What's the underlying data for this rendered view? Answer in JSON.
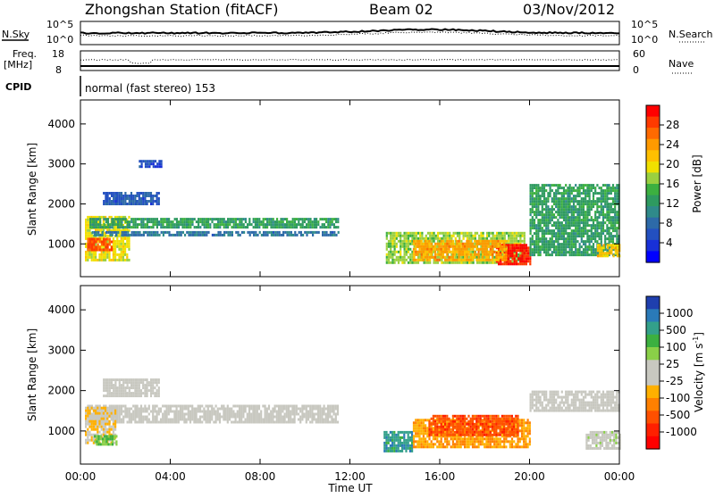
{
  "header": {
    "station": "Zhongshan Station (fitACF)",
    "beam": "Beam 02",
    "date": "03/Nov/2012"
  },
  "status_panels": {
    "nsky_label": "N.Sky",
    "nsky_ticks": [
      "10^5",
      "10^0"
    ],
    "nsearch_label": "N.Search",
    "nsearch_ticks": [
      "10^5",
      "10^0"
    ],
    "freq_label_top": "Freq.",
    "freq_label_unit": "[MHz]",
    "freq_ticks": [
      "18",
      "8"
    ],
    "nave_label": "Nave",
    "nave_ticks": [
      "60",
      "0"
    ],
    "cpid_label": "CPID",
    "cpid_value": "normal (fast stereo) 153"
  },
  "axes": {
    "ylabel": "Slant Range [km]",
    "yticks": [
      "4000",
      "3000",
      "2000",
      "1000"
    ],
    "xlabel": "Time UT",
    "xticks": [
      "00:00",
      "04:00",
      "08:00",
      "12:00",
      "16:00",
      "20:00",
      "00:00"
    ]
  },
  "power_colorbar": {
    "label": "Power [dB]",
    "ticks": [
      "28",
      "24",
      "20",
      "16",
      "12",
      "8",
      "4"
    ],
    "colors": [
      "#ff0000",
      "#ff3a00",
      "#ff6a00",
      "#ff9a00",
      "#ffc000",
      "#f0e000",
      "#9ad040",
      "#3cb040",
      "#2e9a60",
      "#2f8a8a",
      "#2d6aa8",
      "#2350c0",
      "#1830d8",
      "#0000ff"
    ]
  },
  "velocity_colorbar": {
    "label": "Velocity [m s-1]",
    "label_text": "Velocity",
    "label_unit": "[m s",
    "label_sup": "-1",
    "label_close": "]",
    "ticks": [
      "1000",
      "500",
      "100",
      "25",
      "-25",
      "-100",
      "-500",
      "-1000"
    ],
    "colors": [
      "#1f3fae",
      "#2a7ab8",
      "#33a08a",
      "#3cb040",
      "#8ad048",
      "#c8c8c0",
      "#c8c8c0",
      "#ffb000",
      "#ff8000",
      "#ff5000",
      "#ff2000",
      "#ff0000"
    ]
  },
  "chart_data": [
    {
      "type": "heatmap",
      "name": "Power",
      "x": [
        "00:00",
        "04:00",
        "08:00",
        "12:00",
        "16:00",
        "20:00",
        "00:00"
      ],
      "xlabel": "Time UT",
      "ylabel": "Slant Range [km]",
      "ylim": [
        180,
        4600
      ],
      "colorbar_label": "Power [dB]",
      "colorbar_range": [
        0,
        30
      ],
      "regions": [
        {
          "t": [
            0.2,
            2.2
          ],
          "r": [
            600,
            1700
          ],
          "value": 18
        },
        {
          "t": [
            0.3,
            1.4
          ],
          "r": [
            850,
            1150
          ],
          "value": 26
        },
        {
          "t": [
            0.4,
            11.5
          ],
          "r": [
            1400,
            1650
          ],
          "value": 12
        },
        {
          "t": [
            0.5,
            11.5
          ],
          "r": [
            1250,
            1320
          ],
          "value": 8
        },
        {
          "t": [
            1.0,
            3.5
          ],
          "r": [
            2000,
            2300
          ],
          "value": 6
        },
        {
          "t": [
            2.6,
            3.6
          ],
          "r": [
            2900,
            3100
          ],
          "value": 5
        },
        {
          "t": [
            13.6,
            19.8
          ],
          "r": [
            500,
            1300
          ],
          "value": 16
        },
        {
          "t": [
            18.5,
            20.0
          ],
          "r": [
            500,
            1000
          ],
          "value": 28
        },
        {
          "t": [
            14.8,
            19.0
          ],
          "r": [
            600,
            1100
          ],
          "value": 22
        },
        {
          "t": [
            20.0,
            24.0
          ],
          "r": [
            700,
            2500
          ],
          "value": 12
        },
        {
          "t": [
            23.0,
            24.0
          ],
          "r": [
            700,
            1000
          ],
          "value": 20
        }
      ]
    },
    {
      "type": "heatmap",
      "name": "Velocity",
      "x": [
        "00:00",
        "04:00",
        "08:00",
        "12:00",
        "16:00",
        "20:00",
        "00:00"
      ],
      "xlabel": "Time UT",
      "ylabel": "Slant Range [km]",
      "ylim": [
        180,
        4600
      ],
      "colorbar_label": "Velocity [m s-1]",
      "colorbar_range": [
        -1000,
        1000
      ],
      "regions": [
        {
          "t": [
            0.3,
            11.5
          ],
          "r": [
            1250,
            1650
          ],
          "value": 0
        },
        {
          "t": [
            0.2,
            1.6
          ],
          "r": [
            700,
            1600
          ],
          "value": -150
        },
        {
          "t": [
            0.6,
            1.6
          ],
          "r": [
            700,
            900
          ],
          "value": 300
        },
        {
          "t": [
            1.0,
            3.5
          ],
          "r": [
            1900,
            2300
          ],
          "value": 0
        },
        {
          "t": [
            13.5,
            14.8
          ],
          "r": [
            500,
            1000
          ],
          "value": 600
        },
        {
          "t": [
            14.8,
            20.0
          ],
          "r": [
            600,
            1300
          ],
          "value": -300
        },
        {
          "t": [
            15.5,
            19.5
          ],
          "r": [
            900,
            1400
          ],
          "value": -600
        },
        {
          "t": [
            20.0,
            24.0
          ],
          "r": [
            1500,
            2000
          ],
          "value": 0
        },
        {
          "t": [
            22.5,
            24.0
          ],
          "r": [
            600,
            1000
          ],
          "value": 80
        }
      ]
    }
  ]
}
